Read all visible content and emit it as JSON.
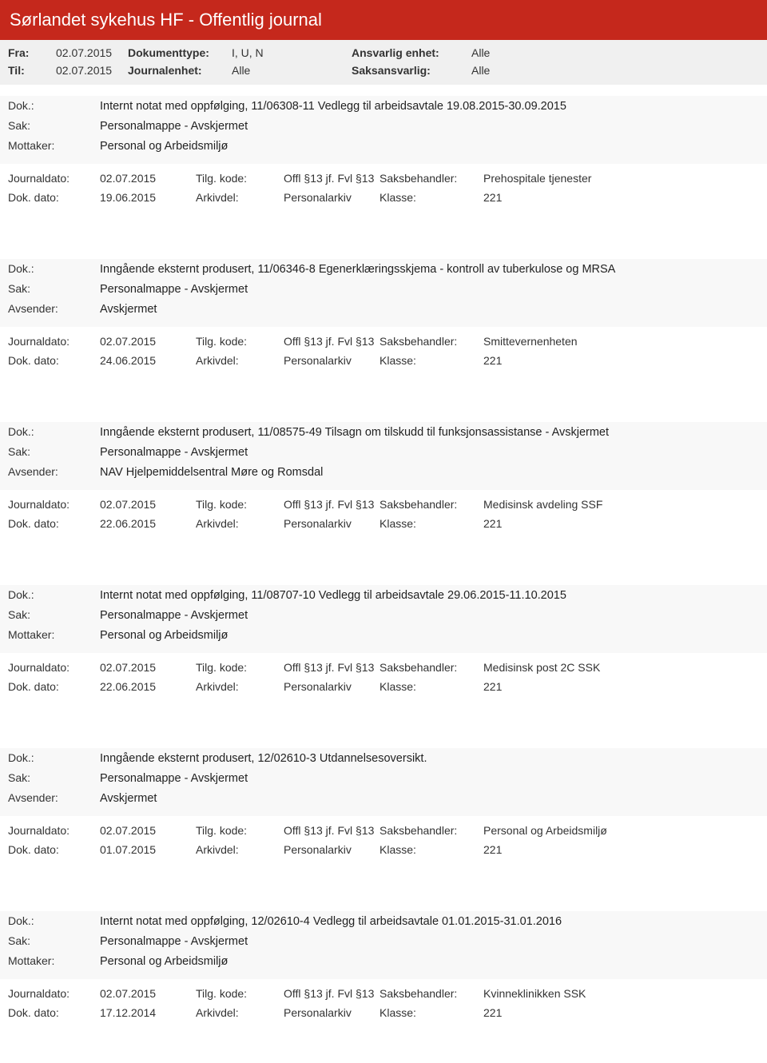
{
  "header": {
    "title": "Sørlandet sykehus HF - Offentlig journal"
  },
  "filters": {
    "fra_label": "Fra:",
    "fra_value": "02.07.2015",
    "til_label": "Til:",
    "til_value": "02.07.2015",
    "doktype_label": "Dokumenttype:",
    "doktype_value": "I, U, N",
    "journalenhet_label": "Journalenhet:",
    "journalenhet_value": "Alle",
    "ansvarlig_label": "Ansvarlig enhet:",
    "ansvarlig_value": "Alle",
    "saksansvarlig_label": "Saksansvarlig:",
    "saksansvarlig_value": "Alle"
  },
  "labels": {
    "dok": "Dok.:",
    "sak": "Sak:",
    "mottaker": "Mottaker:",
    "avsender": "Avsender:",
    "journaldato": "Journaldato:",
    "dokdato": "Dok. dato:",
    "tilgkode": "Tilg. kode:",
    "arkivdel": "Arkivdel:",
    "saksbehandler": "Saksbehandler:",
    "klasse": "Klasse:"
  },
  "entries": [
    {
      "dok": "Internt notat med oppfølging, 11/06308-11 Vedlegg til arbeidsavtale 19.08.2015-30.09.2015",
      "sak": "Personalmappe - Avskjermet",
      "party_label": "Mottaker:",
      "party": "Personal og Arbeidsmiljø",
      "journaldato": "02.07.2015",
      "tilgkode": "Offl §13 jf. Fvl §13",
      "saksbehandler": "Prehospitale tjenester",
      "dokdato": "19.06.2015",
      "arkivdel": "Personalarkiv",
      "klasse": "221"
    },
    {
      "dok": "Inngående eksternt produsert, 11/06346-8 Egenerklæringsskjema - kontroll av tuberkulose og MRSA",
      "sak": "Personalmappe - Avskjermet",
      "party_label": "Avsender:",
      "party": "Avskjermet",
      "journaldato": "02.07.2015",
      "tilgkode": "Offl §13 jf. Fvl §13",
      "saksbehandler": "Smittevernenheten",
      "dokdato": "24.06.2015",
      "arkivdel": "Personalarkiv",
      "klasse": "221"
    },
    {
      "dok": "Inngående eksternt produsert, 11/08575-49 Tilsagn om tilskudd til funksjonsassistanse - Avskjermet",
      "sak": "Personalmappe - Avskjermet",
      "party_label": "Avsender:",
      "party": "NAV Hjelpemiddelsentral Møre og Romsdal",
      "journaldato": "02.07.2015",
      "tilgkode": "Offl §13 jf. Fvl §13",
      "saksbehandler": "Medisinsk avdeling SSF",
      "dokdato": "22.06.2015",
      "arkivdel": "Personalarkiv",
      "klasse": "221"
    },
    {
      "dok": "Internt notat med oppfølging, 11/08707-10 Vedlegg til arbeidsavtale 29.06.2015-11.10.2015",
      "sak": "Personalmappe - Avskjermet",
      "party_label": "Mottaker:",
      "party": "Personal og Arbeidsmiljø",
      "journaldato": "02.07.2015",
      "tilgkode": "Offl §13 jf. Fvl §13",
      "saksbehandler": "Medisinsk post 2C SSK",
      "dokdato": "22.06.2015",
      "arkivdel": "Personalarkiv",
      "klasse": "221"
    },
    {
      "dok": "Inngående eksternt produsert, 12/02610-3 Utdannelsesoversikt.",
      "sak": "Personalmappe - Avskjermet",
      "party_label": "Avsender:",
      "party": "Avskjermet",
      "journaldato": "02.07.2015",
      "tilgkode": "Offl §13 jf. Fvl §13",
      "saksbehandler": "Personal og Arbeidsmiljø",
      "dokdato": "01.07.2015",
      "arkivdel": "Personalarkiv",
      "klasse": "221"
    },
    {
      "dok": "Internt notat med oppfølging, 12/02610-4 Vedlegg til arbeidsavtale 01.01.2015-31.01.2016",
      "sak": "Personalmappe - Avskjermet",
      "party_label": "Mottaker:",
      "party": "Personal og Arbeidsmiljø",
      "journaldato": "02.07.2015",
      "tilgkode": "Offl §13 jf. Fvl §13",
      "saksbehandler": "Kvinneklinikken SSK",
      "dokdato": "17.12.2014",
      "arkivdel": "Personalarkiv",
      "klasse": "221"
    }
  ],
  "colors": {
    "header_bg": "#c5281c",
    "header_fg": "#ffffff",
    "filter_bg": "#f0f0f0",
    "entry_top_bg": "#f8f8f8"
  }
}
